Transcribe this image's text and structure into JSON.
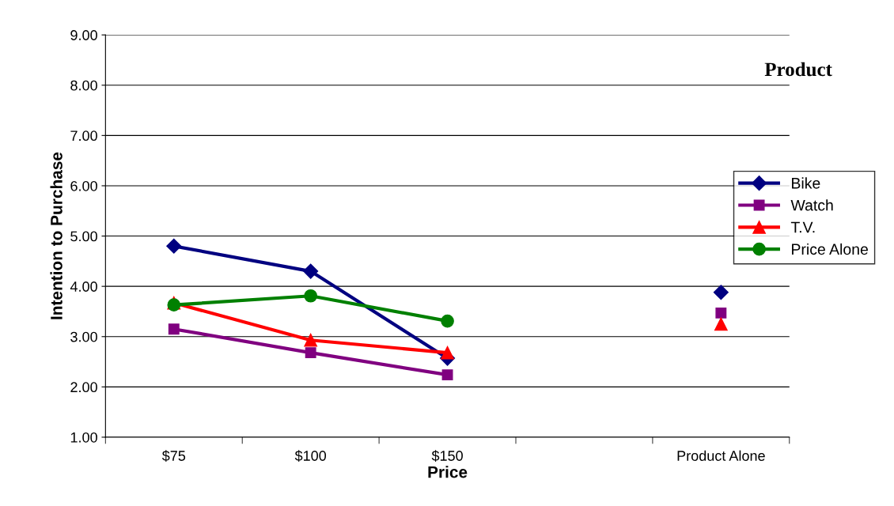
{
  "chart_data": {
    "type": "line",
    "xlabel": "Price",
    "ylabel": "Intention to Purchase",
    "legend_title": "Product",
    "categories": [
      "$75",
      "$100",
      "$150",
      null,
      "Product Alone"
    ],
    "series": [
      {
        "name": "Bike",
        "color": "#000080",
        "marker": "diamond",
        "values": [
          4.8,
          4.3,
          2.57,
          null,
          3.88
        ]
      },
      {
        "name": "Watch",
        "color": "#800080",
        "marker": "square",
        "values": [
          3.15,
          2.68,
          2.24,
          null,
          3.47
        ]
      },
      {
        "name": "T.V.",
        "color": "#ff0000",
        "marker": "triangle",
        "values": [
          3.67,
          2.93,
          2.68,
          null,
          3.25
        ]
      },
      {
        "name": "Price Alone",
        "color": "#008000",
        "marker": "circle",
        "values": [
          3.63,
          3.81,
          3.31,
          null,
          null
        ]
      }
    ],
    "ylim": [
      1,
      9
    ],
    "yticks": [
      {
        "value": 1,
        "label": "1.00"
      },
      {
        "value": 2,
        "label": "2.00"
      },
      {
        "value": 3,
        "label": "3.00"
      },
      {
        "value": 4,
        "label": "4.00"
      },
      {
        "value": 5,
        "label": "5.00"
      },
      {
        "value": 6,
        "label": "6.00"
      },
      {
        "value": 7,
        "label": "7.00"
      },
      {
        "value": 8,
        "label": "8.00"
      },
      {
        "value": 9,
        "label": "9.00"
      }
    ],
    "grid": "y",
    "legend": "right",
    "line_style": "solid"
  }
}
